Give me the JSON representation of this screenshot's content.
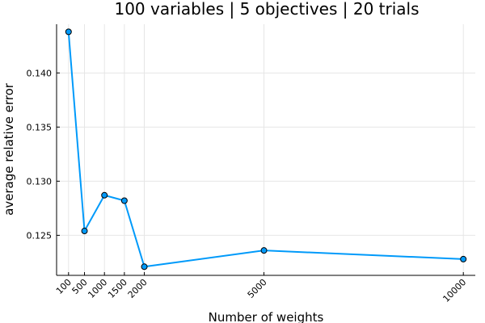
{
  "chart_data": {
    "type": "line",
    "title": "100 variables | 5 objectives | 20 trials",
    "xlabel": "Number of weights",
    "ylabel": "average relative error",
    "x": [
      100,
      500,
      1000,
      1500,
      2000,
      5000,
      10000
    ],
    "series": [
      {
        "values": [
          0.1438,
          0.1254,
          0.1287,
          0.1282,
          0.1221,
          0.1236,
          0.1228
        ]
      }
    ],
    "x_ticks": [
      100,
      500,
      1000,
      1500,
      2000,
      5000,
      10000
    ],
    "x_tick_labels": [
      "100",
      "500",
      "1000",
      "1500",
      "2000",
      "5000",
      "10000"
    ],
    "y_ticks": [
      0.125,
      0.13,
      0.135,
      0.14
    ],
    "y_tick_labels": [
      "0.125",
      "0.130",
      "0.135",
      "0.140"
    ],
    "xlim": [
      -200,
      10300
    ],
    "ylim": [
      0.1213,
      0.1445
    ],
    "grid": true,
    "legend": "none",
    "colors": {
      "line": "#009AFA",
      "marker": "#009AFA",
      "marker_edge": "#000000"
    }
  }
}
